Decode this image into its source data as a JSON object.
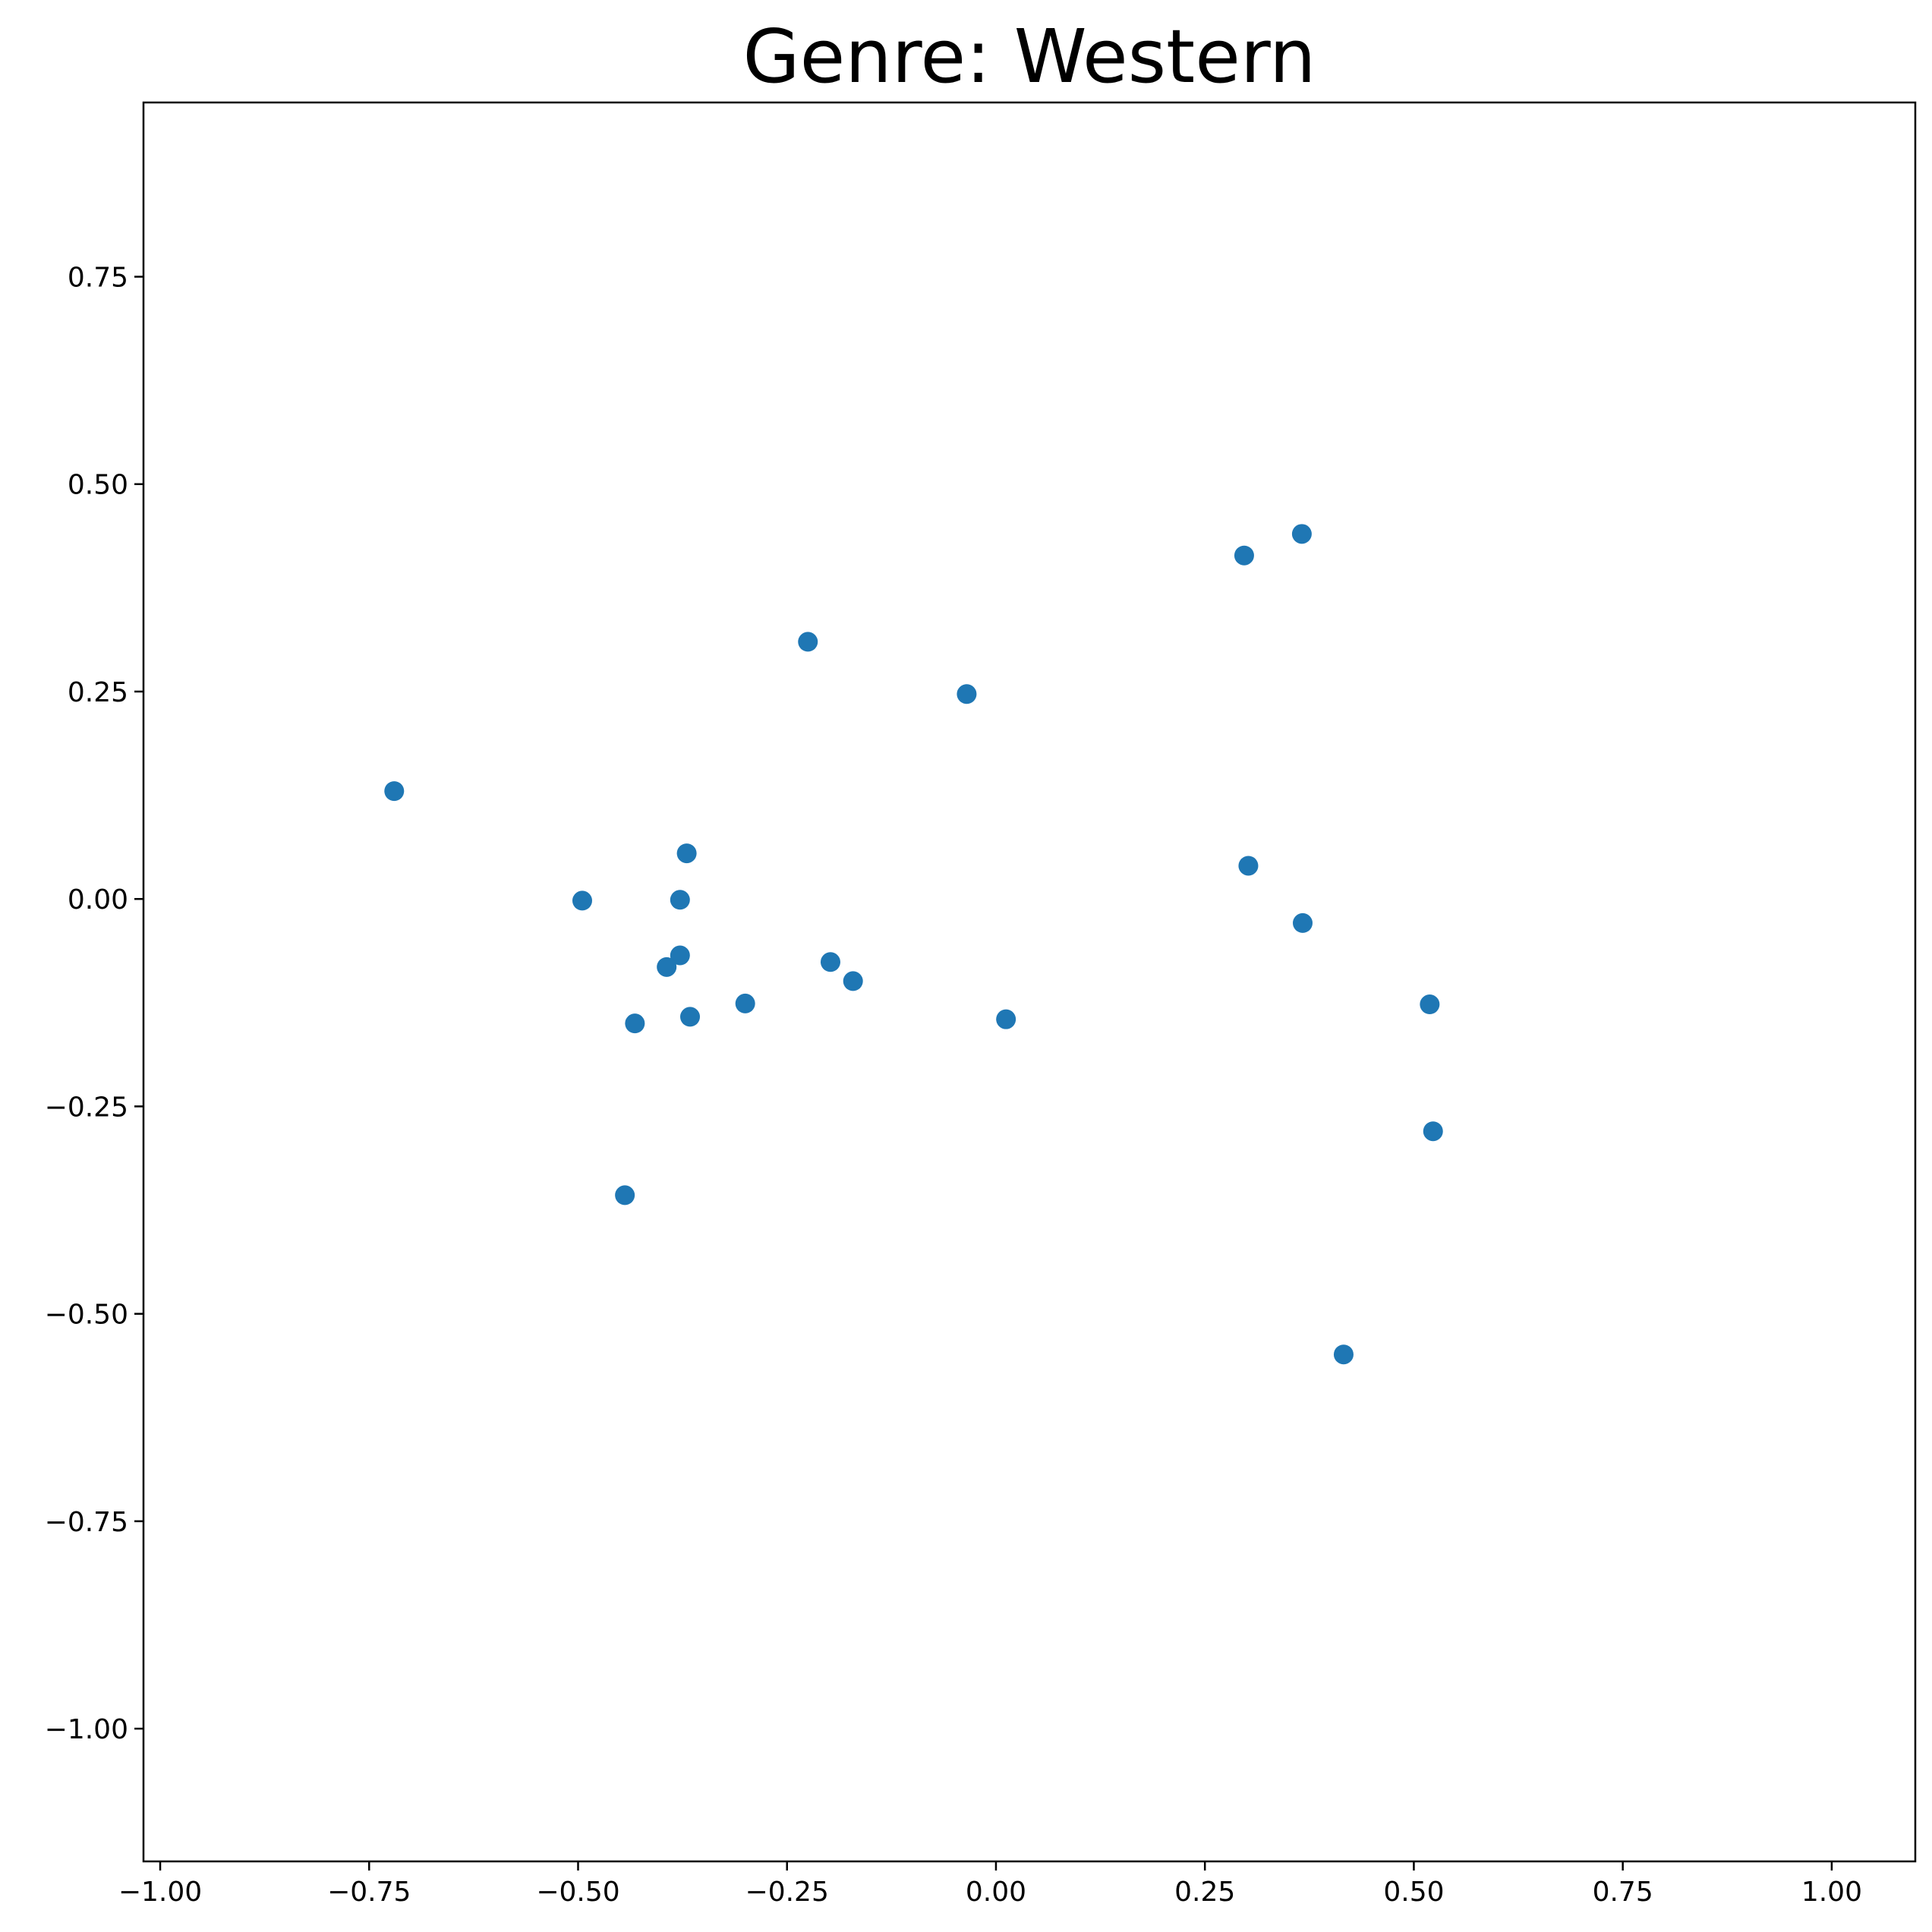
{
  "chart_data": {
    "type": "scatter",
    "title": "Genre: Western",
    "xlabel": "",
    "ylabel": "",
    "xlim": [
      -1.02,
      1.1
    ],
    "ylim": [
      -1.16,
      0.96
    ],
    "grid": false,
    "legend": "none",
    "marker_color": "#1f77b4",
    "x_ticks": [
      {
        "value": -1.0,
        "label": "−1.00"
      },
      {
        "value": -0.75,
        "label": "−0.75"
      },
      {
        "value": -0.5,
        "label": "−0.50"
      },
      {
        "value": -0.25,
        "label": "−0.25"
      },
      {
        "value": 0.0,
        "label": "0.00"
      },
      {
        "value": 0.25,
        "label": "0.25"
      },
      {
        "value": 0.5,
        "label": "0.50"
      },
      {
        "value": 0.75,
        "label": "0.75"
      },
      {
        "value": 1.0,
        "label": "1.00"
      }
    ],
    "y_ticks": [
      {
        "value": 0.75,
        "label": "0.75"
      },
      {
        "value": 0.5,
        "label": "0.50"
      },
      {
        "value": 0.25,
        "label": "0.25"
      },
      {
        "value": 0.0,
        "label": "0.00"
      },
      {
        "value": -0.25,
        "label": "−0.25"
      },
      {
        "value": -0.5,
        "label": "−0.50"
      },
      {
        "value": -0.75,
        "label": "−0.75"
      },
      {
        "value": -1.0,
        "label": "−1.00"
      }
    ],
    "points": [
      {
        "x": -0.72,
        "y": 0.13
      },
      {
        "x": -0.495,
        "y": -0.002
      },
      {
        "x": -0.37,
        "y": 0.055
      },
      {
        "x": -0.378,
        "y": -0.001
      },
      {
        "x": -0.378,
        "y": -0.068
      },
      {
        "x": -0.394,
        "y": -0.082
      },
      {
        "x": -0.432,
        "y": -0.15
      },
      {
        "x": -0.366,
        "y": -0.142
      },
      {
        "x": -0.3,
        "y": -0.126
      },
      {
        "x": -0.444,
        "y": -0.357
      },
      {
        "x": -0.225,
        "y": 0.31
      },
      {
        "x": -0.198,
        "y": -0.076
      },
      {
        "x": -0.171,
        "y": -0.099
      },
      {
        "x": -0.035,
        "y": 0.247
      },
      {
        "x": 0.012,
        "y": -0.145
      },
      {
        "x": 0.297,
        "y": 0.414
      },
      {
        "x": 0.366,
        "y": 0.44
      },
      {
        "x": 0.302,
        "y": 0.04
      },
      {
        "x": 0.367,
        "y": -0.029
      },
      {
        "x": 0.519,
        "y": -0.127
      },
      {
        "x": 0.523,
        "y": -0.28
      },
      {
        "x": 0.416,
        "y": -0.549
      }
    ]
  }
}
